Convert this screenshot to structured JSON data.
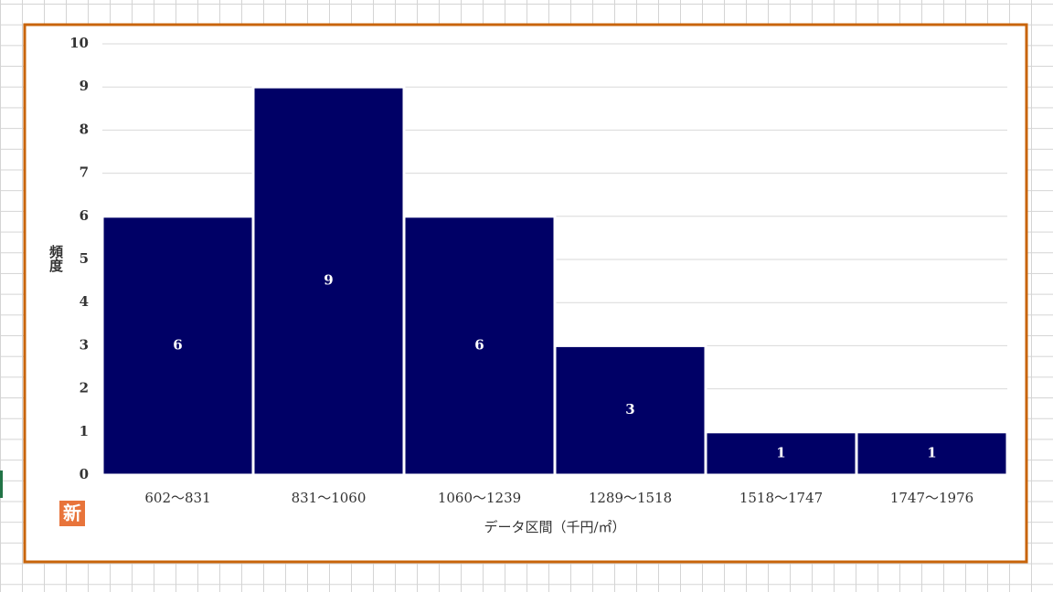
{
  "chart_data": {
    "type": "bar",
    "categories": [
      "602～831",
      "831～1060",
      "1060～1239",
      "1289～1518",
      "1518～1747",
      "1747～1976"
    ],
    "values": [
      6,
      9,
      6,
      3,
      1,
      1
    ],
    "color": "#000066",
    "ylim": [
      0,
      10
    ],
    "yticks": [
      0,
      1,
      2,
      3,
      4,
      5,
      6,
      7,
      8,
      9,
      10
    ],
    "grid": true,
    "x_label": "データ区間（千円/㎡）",
    "y_label": "頻度"
  },
  "badge": "新"
}
